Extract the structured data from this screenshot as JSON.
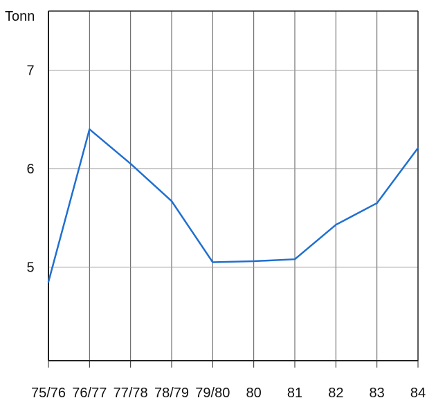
{
  "chart_data": {
    "type": "line",
    "title": "",
    "ylabel": "Tonn",
    "xlabel": "",
    "categories": [
      "75/76",
      "76/77",
      "77/78",
      "78/79",
      "79/80",
      "80",
      "81",
      "82",
      "83",
      "84"
    ],
    "series": [
      {
        "values": [
          4.85,
          6.4,
          6.05,
          5.67,
          5.05,
          5.06,
          5.08,
          5.43,
          5.65,
          6.21
        ]
      }
    ],
    "yticks": [
      "5",
      "6",
      "7"
    ],
    "ylim": [
      4.05,
      7.6
    ],
    "grid": true,
    "line_color": "#1f6fd0"
  }
}
